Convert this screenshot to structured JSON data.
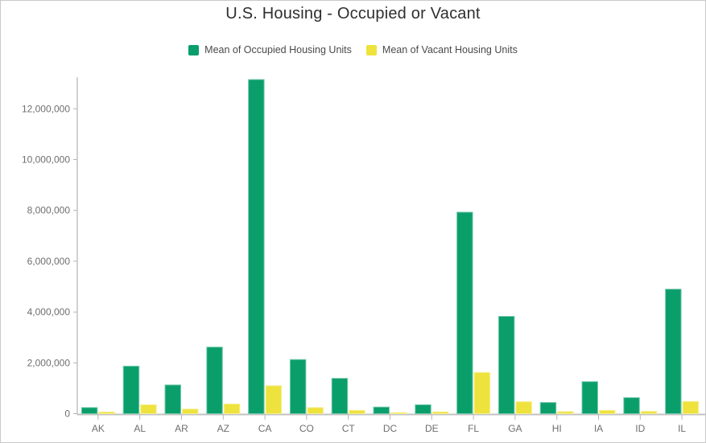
{
  "chart": {
    "title": "U.S. Housing - Occupied or Vacant",
    "legend": [
      {
        "label": "Mean of Occupied Housing Units",
        "color": "#0a9e6b"
      },
      {
        "label": "Mean of Vacant Housing Units",
        "color": "#eee23d"
      }
    ]
  },
  "chart_data": {
    "type": "bar",
    "title": "U.S. Housing - Occupied or Vacant",
    "categories": [
      "AK",
      "AL",
      "AR",
      "AZ",
      "CA",
      "CO",
      "CT",
      "DC",
      "DE",
      "FL",
      "GA",
      "HI",
      "IA",
      "ID",
      "IL"
    ],
    "series": [
      {
        "name": "Mean of Occupied Housing Units",
        "color": "#0a9e6b",
        "values": [
          240000,
          1870000,
          1130000,
          2620000,
          13150000,
          2130000,
          1390000,
          260000,
          350000,
          7930000,
          3830000,
          440000,
          1260000,
          630000,
          4900000
        ]
      },
      {
        "name": "Mean of Vacant Housing Units",
        "color": "#eee23d",
        "values": [
          65000,
          350000,
          180000,
          380000,
          1100000,
          240000,
          130000,
          40000,
          70000,
          1620000,
          470000,
          80000,
          130000,
          90000,
          480000
        ]
      }
    ],
    "xlabel": "",
    "ylabel": "",
    "ylim": [
      0,
      13250000
    ],
    "yticks": [
      0,
      2000000,
      4000000,
      6000000,
      8000000,
      10000000,
      12000000
    ],
    "grid": false,
    "legend_position": "top"
  }
}
